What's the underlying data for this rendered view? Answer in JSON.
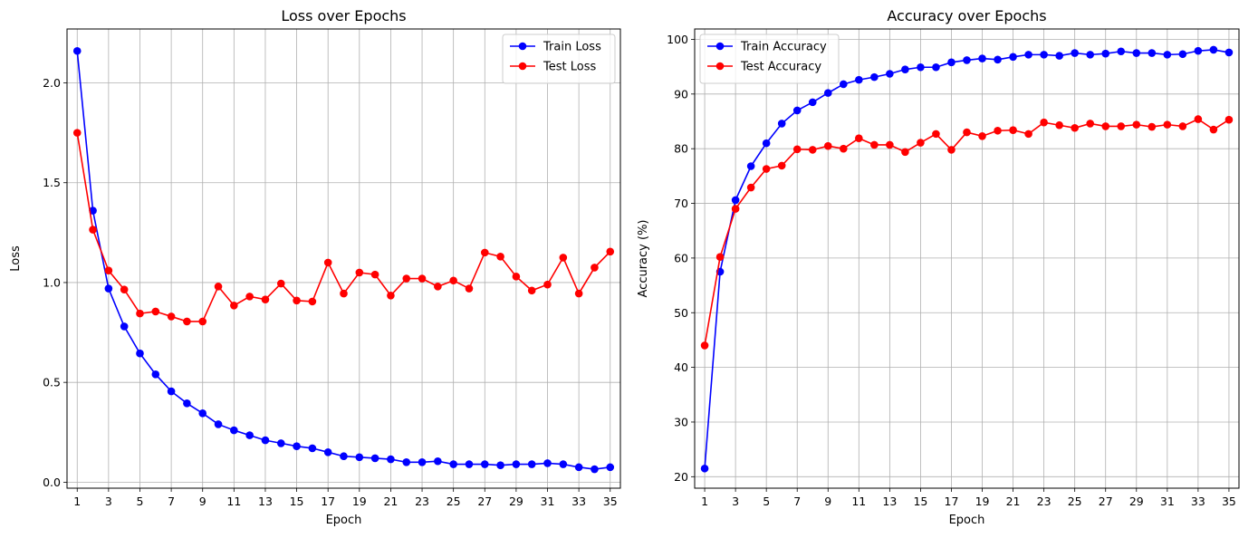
{
  "colors": {
    "train": "#0000ff",
    "test": "#ff0000",
    "grid": "#b0b0b0"
  },
  "chart_data": [
    {
      "type": "line",
      "title": "Loss over Epochs",
      "xlabel": "Epoch",
      "ylabel": "Loss",
      "xlim": [
        0.35,
        35.65
      ],
      "ylim": [
        -0.03,
        2.27
      ],
      "x_ticks": [
        1,
        3,
        5,
        7,
        9,
        11,
        13,
        15,
        17,
        19,
        21,
        23,
        25,
        27,
        29,
        31,
        33,
        35
      ],
      "y_ticks": [
        0.0,
        0.5,
        1.0,
        1.5,
        2.0
      ],
      "y_tick_labels": [
        "0.0",
        "0.5",
        "1.0",
        "1.5",
        "2.0"
      ],
      "grid": true,
      "legend_position": "top-right",
      "x": [
        1,
        2,
        3,
        4,
        5,
        6,
        7,
        8,
        9,
        10,
        11,
        12,
        13,
        14,
        15,
        16,
        17,
        18,
        19,
        20,
        21,
        22,
        23,
        24,
        25,
        26,
        27,
        28,
        29,
        30,
        31,
        32,
        33,
        34,
        35
      ],
      "series": [
        {
          "name": "Train Loss",
          "color": "#0000ff",
          "values": [
            2.16,
            1.36,
            0.97,
            0.78,
            0.645,
            0.54,
            0.455,
            0.395,
            0.345,
            0.29,
            0.26,
            0.235,
            0.21,
            0.195,
            0.18,
            0.17,
            0.15,
            0.13,
            0.125,
            0.12,
            0.115,
            0.1,
            0.1,
            0.105,
            0.09,
            0.09,
            0.09,
            0.085,
            0.09,
            0.09,
            0.095,
            0.09,
            0.075,
            0.065,
            0.075
          ]
        },
        {
          "name": "Test Loss",
          "color": "#ff0000",
          "values": [
            1.75,
            1.265,
            1.06,
            0.965,
            0.845,
            0.855,
            0.83,
            0.805,
            0.805,
            0.98,
            0.885,
            0.93,
            0.915,
            0.995,
            0.91,
            0.905,
            1.1,
            0.945,
            1.05,
            1.04,
            0.935,
            1.02,
            1.02,
            0.98,
            1.01,
            0.97,
            1.15,
            1.13,
            1.03,
            0.96,
            0.99,
            1.125,
            0.945,
            1.075,
            1.155
          ]
        }
      ]
    },
    {
      "type": "line",
      "title": "Accuracy over Epochs",
      "xlabel": "Epoch",
      "ylabel": "Accuracy (%)",
      "xlim": [
        0.35,
        35.65
      ],
      "ylim": [
        17.9,
        101.9
      ],
      "x_ticks": [
        1,
        3,
        5,
        7,
        9,
        11,
        13,
        15,
        17,
        19,
        21,
        23,
        25,
        27,
        29,
        31,
        33,
        35
      ],
      "y_ticks": [
        20,
        30,
        40,
        50,
        60,
        70,
        80,
        90,
        100
      ],
      "y_tick_labels": [
        "20",
        "30",
        "40",
        "50",
        "60",
        "70",
        "80",
        "90",
        "100"
      ],
      "grid": true,
      "legend_position": "top-left",
      "x": [
        1,
        2,
        3,
        4,
        5,
        6,
        7,
        8,
        9,
        10,
        11,
        12,
        13,
        14,
        15,
        16,
        17,
        18,
        19,
        20,
        21,
        22,
        23,
        24,
        25,
        26,
        27,
        28,
        29,
        30,
        31,
        32,
        33,
        34,
        35
      ],
      "series": [
        {
          "name": "Train Accuracy",
          "color": "#0000ff",
          "values": [
            21.5,
            57.5,
            70.6,
            76.8,
            81.0,
            84.6,
            87.0,
            88.5,
            90.2,
            91.8,
            92.6,
            93.1,
            93.7,
            94.5,
            94.9,
            94.9,
            95.8,
            96.2,
            96.5,
            96.3,
            96.8,
            97.2,
            97.2,
            97.0,
            97.5,
            97.2,
            97.4,
            97.8,
            97.5,
            97.5,
            97.2,
            97.3,
            97.9,
            98.1,
            97.6
          ]
        },
        {
          "name": "Test Accuracy",
          "color": "#ff0000",
          "values": [
            44.0,
            60.2,
            69.0,
            72.9,
            76.3,
            76.9,
            79.9,
            79.8,
            80.5,
            80.0,
            81.9,
            80.7,
            80.7,
            79.4,
            81.1,
            82.7,
            79.8,
            83.0,
            82.3,
            83.3,
            83.4,
            82.7,
            84.8,
            84.3,
            83.8,
            84.6,
            84.1,
            84.1,
            84.4,
            84.0,
            84.4,
            84.1,
            85.4,
            83.5,
            85.3
          ]
        }
      ]
    }
  ]
}
